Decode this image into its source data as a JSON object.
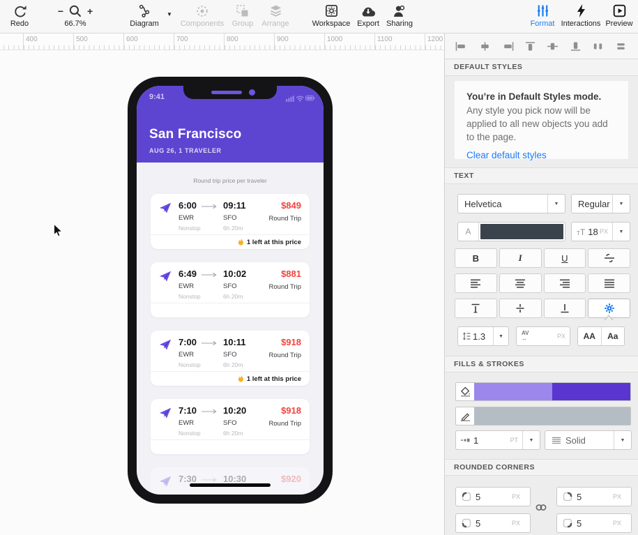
{
  "toolbar": {
    "items": {
      "redo": "Redo",
      "zoom_out": "−",
      "zoom_in": "+",
      "zoom_percent": "66.7%",
      "diagram": "Diagram",
      "components": "Components",
      "group": "Group",
      "arrange": "Arrange",
      "workspace": "Workspace",
      "export": "Export",
      "sharing": "Sharing",
      "format": "Format",
      "interactions": "Interactions",
      "preview": "Preview"
    }
  },
  "ruler": {
    "labels": [
      "400",
      "500",
      "600",
      "700",
      "800",
      "900",
      "1000",
      "1100",
      "1200"
    ]
  },
  "phone": {
    "status_time": "9:41",
    "header": {
      "title": "San Francisco",
      "subtitle": "AUG 26, 1 TRAVELER",
      "bg": "#5d45d1"
    },
    "list_caption": "Round trip price per traveler",
    "price_color": "#f4433c",
    "flights": [
      {
        "depart": "6:00",
        "arrive": "09:11",
        "price": "$849",
        "from": "EWR",
        "to": "SFO",
        "fare": "Round Trip",
        "stops": "Nonstop",
        "duration": "6h 20m",
        "note": "1 left at this price"
      },
      {
        "depart": "6:49",
        "arrive": "10:02",
        "price": "$881",
        "from": "EWR",
        "to": "SFO",
        "fare": "Round Trip",
        "stops": "Nonstop",
        "duration": "6h 20m",
        "note": ""
      },
      {
        "depart": "7:00",
        "arrive": "10:11",
        "price": "$918",
        "from": "EWR",
        "to": "SFO",
        "fare": "Round Trip",
        "stops": "Nonstop",
        "duration": "6h 20m",
        "note": "1 left at this price"
      },
      {
        "depart": "7:10",
        "arrive": "10:20",
        "price": "$918",
        "from": "EWR",
        "to": "SFO",
        "fare": "Round Trip",
        "stops": "Nonstop",
        "duration": "6h 20m",
        "note": ""
      },
      {
        "depart": "7:30",
        "arrive": "10:30",
        "price": "$920",
        "from": "",
        "to": "",
        "fare": "",
        "stops": "",
        "duration": "",
        "note": "",
        "faded": true
      }
    ]
  },
  "panel": {
    "sections": {
      "default_styles": "DEFAULT STYLES",
      "text": "TEXT",
      "fills_strokes": "FILLS & STROKES",
      "rounded_corners": "ROUNDED CORNERS"
    },
    "notice": {
      "title": "You’re in Default Styles mode.",
      "body": "Any style you pick now will be applied to all new objects you add to the page.",
      "link": "Clear default styles"
    },
    "text": {
      "font_family": "Helvetica",
      "font_weight": "Regular",
      "color_label": "A",
      "font_size": "18",
      "size_unit": "PX",
      "bold": "B",
      "italic": "I",
      "underline": "U",
      "line_height": "1.3",
      "letter_spacing_placeholder": "PX",
      "uppercase": "AA",
      "capitalize": "Aa"
    },
    "stroke": {
      "width": "1",
      "unit": "PT",
      "style": "Solid"
    },
    "corners": {
      "top_left": "5",
      "top_right": "5",
      "bottom_left": "5",
      "bottom_right": "5",
      "unit": "PX"
    },
    "colors": {
      "accent": "#1b7ef2",
      "text_swatch": "#3a434c",
      "fill_left": "#9c87ec",
      "fill_right": "#5b35cf",
      "stroke_swatch": "#b5bdc4"
    }
  }
}
